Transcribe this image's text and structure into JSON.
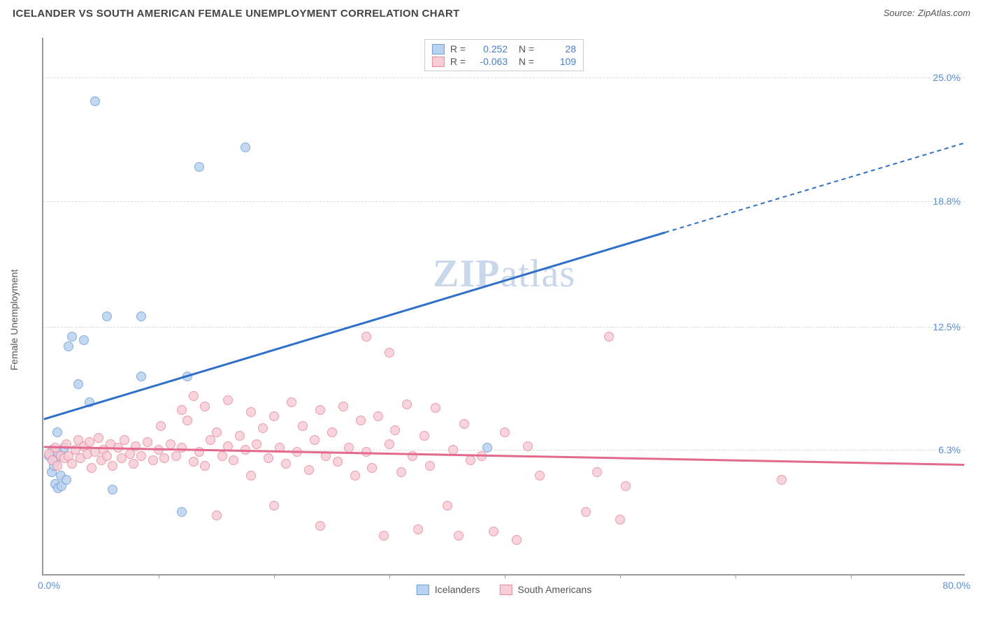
{
  "title": "ICELANDER VS SOUTH AMERICAN FEMALE UNEMPLOYMENT CORRELATION CHART",
  "source_label": "Source:",
  "source_name": "ZipAtlas.com",
  "watermark": "ZIPatlas",
  "chart": {
    "type": "scatter",
    "y_axis_title": "Female Unemployment",
    "xlim": [
      0,
      80
    ],
    "ylim": [
      0,
      27
    ],
    "x_label_start": "0.0%",
    "x_label_end": "80.0%",
    "y_ticks": [
      {
        "v": 6.3,
        "label": "6.3%"
      },
      {
        "v": 12.5,
        "label": "12.5%"
      },
      {
        "v": 18.8,
        "label": "18.8%"
      },
      {
        "v": 25.0,
        "label": "25.0%"
      }
    ],
    "x_ticks_at": [
      10,
      20,
      30,
      40,
      50,
      60,
      70
    ],
    "background_color": "#ffffff",
    "grid_color": "#dddddd",
    "axis_color": "#999999",
    "marker_radius": 7,
    "marker_stroke_width": 1.5,
    "series": [
      {
        "id": "icelanders",
        "label": "Icelanders",
        "color_fill": "#b9d2ef",
        "color_stroke": "#6f9fd8",
        "line_color": "#2e6fc9",
        "R": "0.252",
        "N": "28",
        "trend": {
          "x0": 0,
          "y0": 7.8,
          "x_solid_end": 54,
          "y_solid_end": 17.2,
          "x1": 80,
          "y1": 21.7
        },
        "points": [
          [
            0.5,
            6.0
          ],
          [
            0.7,
            5.2
          ],
          [
            0.8,
            6.3
          ],
          [
            1.0,
            5.7
          ],
          [
            1.2,
            6.2
          ],
          [
            1.5,
            5.0
          ],
          [
            1.8,
            6.4
          ],
          [
            1.0,
            4.6
          ],
          [
            1.3,
            4.4
          ],
          [
            1.6,
            4.5
          ],
          [
            2.0,
            4.8
          ],
          [
            0.9,
            5.5
          ],
          [
            1.2,
            7.2
          ],
          [
            2.2,
            11.5
          ],
          [
            2.5,
            12.0
          ],
          [
            3.5,
            11.8
          ],
          [
            3.0,
            9.6
          ],
          [
            4.0,
            8.7
          ],
          [
            5.5,
            13.0
          ],
          [
            8.5,
            13.0
          ],
          [
            6.0,
            4.3
          ],
          [
            8.5,
            10.0
          ],
          [
            12.0,
            3.2
          ],
          [
            12.5,
            10.0
          ],
          [
            4.5,
            23.8
          ],
          [
            13.5,
            20.5
          ],
          [
            17.5,
            21.5
          ],
          [
            38.5,
            6.4
          ]
        ]
      },
      {
        "id": "south_americans",
        "label": "South Americans",
        "color_fill": "#f7cdd7",
        "color_stroke": "#e78aa2",
        "line_color": "#e36a8c",
        "R": "-0.063",
        "N": "109",
        "trend": {
          "x0": 0,
          "y0": 6.4,
          "x_solid_end": 80,
          "y_solid_end": 5.5,
          "x1": 80,
          "y1": 5.5
        },
        "points": [
          [
            0.5,
            6.1
          ],
          [
            0.8,
            5.8
          ],
          [
            1.0,
            6.4
          ],
          [
            1.2,
            5.5
          ],
          [
            1.5,
            6.0
          ],
          [
            1.8,
            5.9
          ],
          [
            2.0,
            6.6
          ],
          [
            2.2,
            6.0
          ],
          [
            2.5,
            5.6
          ],
          [
            2.8,
            6.3
          ],
          [
            3.0,
            6.8
          ],
          [
            3.2,
            5.9
          ],
          [
            3.5,
            6.5
          ],
          [
            3.8,
            6.1
          ],
          [
            4.0,
            6.7
          ],
          [
            4.2,
            5.4
          ],
          [
            4.5,
            6.2
          ],
          [
            4.8,
            6.9
          ],
          [
            5.0,
            5.8
          ],
          [
            5.2,
            6.3
          ],
          [
            5.5,
            6.0
          ],
          [
            5.8,
            6.6
          ],
          [
            6.0,
            5.5
          ],
          [
            6.5,
            6.4
          ],
          [
            6.8,
            5.9
          ],
          [
            7.0,
            6.8
          ],
          [
            7.5,
            6.1
          ],
          [
            7.8,
            5.6
          ],
          [
            8.0,
            6.5
          ],
          [
            8.5,
            6.0
          ],
          [
            9.0,
            6.7
          ],
          [
            9.5,
            5.8
          ],
          [
            10.0,
            6.3
          ],
          [
            10.2,
            7.5
          ],
          [
            10.5,
            5.9
          ],
          [
            11.0,
            6.6
          ],
          [
            11.5,
            6.0
          ],
          [
            12.0,
            8.3
          ],
          [
            12.0,
            6.4
          ],
          [
            12.5,
            7.8
          ],
          [
            13.0,
            5.7
          ],
          [
            13.0,
            9.0
          ],
          [
            13.5,
            6.2
          ],
          [
            14.0,
            8.5
          ],
          [
            14.0,
            5.5
          ],
          [
            14.5,
            6.8
          ],
          [
            15.0,
            7.2
          ],
          [
            15.0,
            3.0
          ],
          [
            15.5,
            6.0
          ],
          [
            16.0,
            8.8
          ],
          [
            16.0,
            6.5
          ],
          [
            16.5,
            5.8
          ],
          [
            17.0,
            7.0
          ],
          [
            17.5,
            6.3
          ],
          [
            18.0,
            8.2
          ],
          [
            18.0,
            5.0
          ],
          [
            18.5,
            6.6
          ],
          [
            19.0,
            7.4
          ],
          [
            19.5,
            5.9
          ],
          [
            20.0,
            8.0
          ],
          [
            20.0,
            3.5
          ],
          [
            20.5,
            6.4
          ],
          [
            21.0,
            5.6
          ],
          [
            21.5,
            8.7
          ],
          [
            22.0,
            6.2
          ],
          [
            22.5,
            7.5
          ],
          [
            23.0,
            5.3
          ],
          [
            23.5,
            6.8
          ],
          [
            24.0,
            8.3
          ],
          [
            24.0,
            2.5
          ],
          [
            24.5,
            6.0
          ],
          [
            25.0,
            7.2
          ],
          [
            25.5,
            5.7
          ],
          [
            26.0,
            8.5
          ],
          [
            26.5,
            6.4
          ],
          [
            27.0,
            5.0
          ],
          [
            27.5,
            7.8
          ],
          [
            28.0,
            12.0
          ],
          [
            28.0,
            6.2
          ],
          [
            28.5,
            5.4
          ],
          [
            29.0,
            8.0
          ],
          [
            29.5,
            2.0
          ],
          [
            30.0,
            6.6
          ],
          [
            30.0,
            11.2
          ],
          [
            30.5,
            7.3
          ],
          [
            31.0,
            5.2
          ],
          [
            31.5,
            8.6
          ],
          [
            32.0,
            6.0
          ],
          [
            32.5,
            2.3
          ],
          [
            33.0,
            7.0
          ],
          [
            33.5,
            5.5
          ],
          [
            34.0,
            8.4
          ],
          [
            35.0,
            3.5
          ],
          [
            35.5,
            6.3
          ],
          [
            36.0,
            2.0
          ],
          [
            36.5,
            7.6
          ],
          [
            37.0,
            5.8
          ],
          [
            38.0,
            6.0
          ],
          [
            39.0,
            2.2
          ],
          [
            40.0,
            7.2
          ],
          [
            41.0,
            1.8
          ],
          [
            42.0,
            6.5
          ],
          [
            43.0,
            5.0
          ],
          [
            47.0,
            3.2
          ],
          [
            48.0,
            5.2
          ],
          [
            49.0,
            12.0
          ],
          [
            50.0,
            2.8
          ],
          [
            50.5,
            4.5
          ],
          [
            64.0,
            4.8
          ]
        ]
      }
    ]
  }
}
